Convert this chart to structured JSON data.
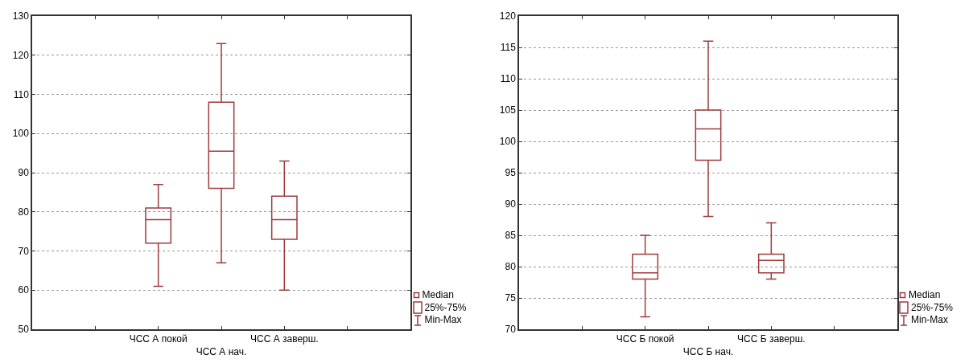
{
  "chart_data": [
    {
      "type": "box",
      "categories": [
        null,
        "ЧСС А покой",
        "ЧСС А нач.",
        "ЧСС А заверш.",
        null
      ],
      "color": "#9e3b3b",
      "boxes": [
        null,
        {
          "low": 61,
          "q1": 72,
          "median": 78,
          "q3": 81,
          "high": 87
        },
        {
          "low": 67,
          "q1": 86,
          "median": 95.5,
          "q3": 108,
          "high": 123
        },
        {
          "low": 60,
          "q1": 73,
          "median": 78,
          "q3": 84,
          "high": 93
        },
        null
      ],
      "ylim": [
        50,
        130
      ],
      "yticks": [
        50,
        60,
        70,
        80,
        90,
        100,
        110,
        120,
        130
      ],
      "grid": "y",
      "annotations": [
        "Median",
        "25%-75%",
        "Min-Max"
      ]
    },
    {
      "type": "box",
      "categories": [
        null,
        "ЧСС Б покой",
        "ЧСС Б нач.",
        "ЧСС Б заверш.",
        null
      ],
      "color": "#9e3b3b",
      "boxes": [
        null,
        {
          "low": 72,
          "q1": 78,
          "median": 79,
          "q3": 82,
          "high": 85
        },
        {
          "low": 88,
          "q1": 97,
          "median": 102,
          "q3": 105,
          "high": 116
        },
        {
          "low": 78,
          "q1": 79,
          "median": 81,
          "q3": 82,
          "high": 87
        },
        null
      ],
      "ylim": [
        70,
        120
      ],
      "yticks": [
        70,
        75,
        80,
        85,
        90,
        95,
        100,
        105,
        110,
        115,
        120
      ],
      "grid": "y",
      "annotations": [
        "Median",
        "25%-75%",
        "Min-Max"
      ]
    }
  ]
}
